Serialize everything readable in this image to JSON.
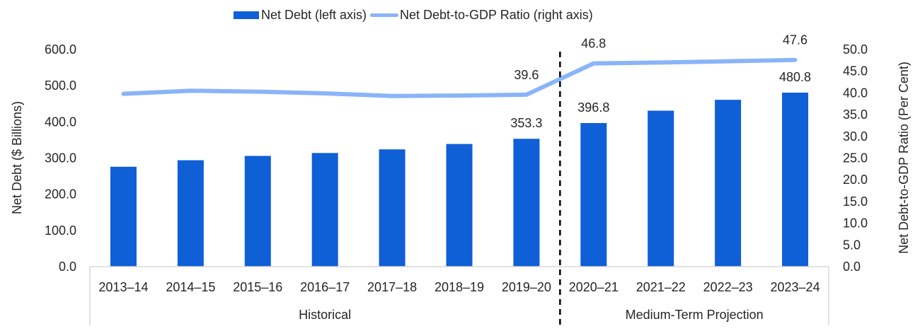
{
  "chart_data": {
    "type": "bar",
    "title": "",
    "categories": [
      "2013–14",
      "2014–15",
      "2015–16",
      "2016–17",
      "2017–18",
      "2018–19",
      "2019–20",
      "2020–21",
      "2021–22",
      "2022–23",
      "2023–24"
    ],
    "groups": [
      {
        "label": "Historical",
        "start": 0,
        "end": 6
      },
      {
        "label": "Medium-Term Projection",
        "start": 7,
        "end": 10
      }
    ],
    "series": [
      {
        "name": "Net Debt (left axis)",
        "type": "bar",
        "axis": "left",
        "color": "#0f5fd6",
        "values": [
          276.0,
          294.0,
          306.0,
          314.0,
          324.0,
          339.0,
          353.3,
          396.8,
          431.0,
          461.0,
          480.8
        ],
        "data_labels": {
          "6": "353.3",
          "7": "396.8",
          "10": "480.8"
        }
      },
      {
        "name": "Net Debt-to-GDP Ratio (right axis)",
        "type": "line",
        "axis": "right",
        "color": "#8ab4f8",
        "values": [
          39.8,
          40.5,
          40.3,
          39.9,
          39.3,
          39.4,
          39.6,
          46.8,
          47.0,
          47.3,
          47.6
        ],
        "data_labels": {
          "6": "39.6",
          "7": "46.8",
          "10": "47.6"
        }
      }
    ],
    "ylabel": "Net Debt ($ Billions)",
    "y2label": "Net Debt-to-GDP Ratio (Per Cent)",
    "ylim": [
      0,
      600
    ],
    "y2lim": [
      0,
      50
    ],
    "yticks": [
      "0.0",
      "100.0",
      "200.0",
      "300.0",
      "400.0",
      "500.0",
      "600.0"
    ],
    "y2ticks": [
      "0.0",
      "5.0",
      "10.0",
      "15.0",
      "20.0",
      "25.0",
      "30.0",
      "35.0",
      "40.0",
      "45.0",
      "50.0"
    ],
    "divider_after_index": 6,
    "grid": false,
    "legend_position": "top-center"
  }
}
